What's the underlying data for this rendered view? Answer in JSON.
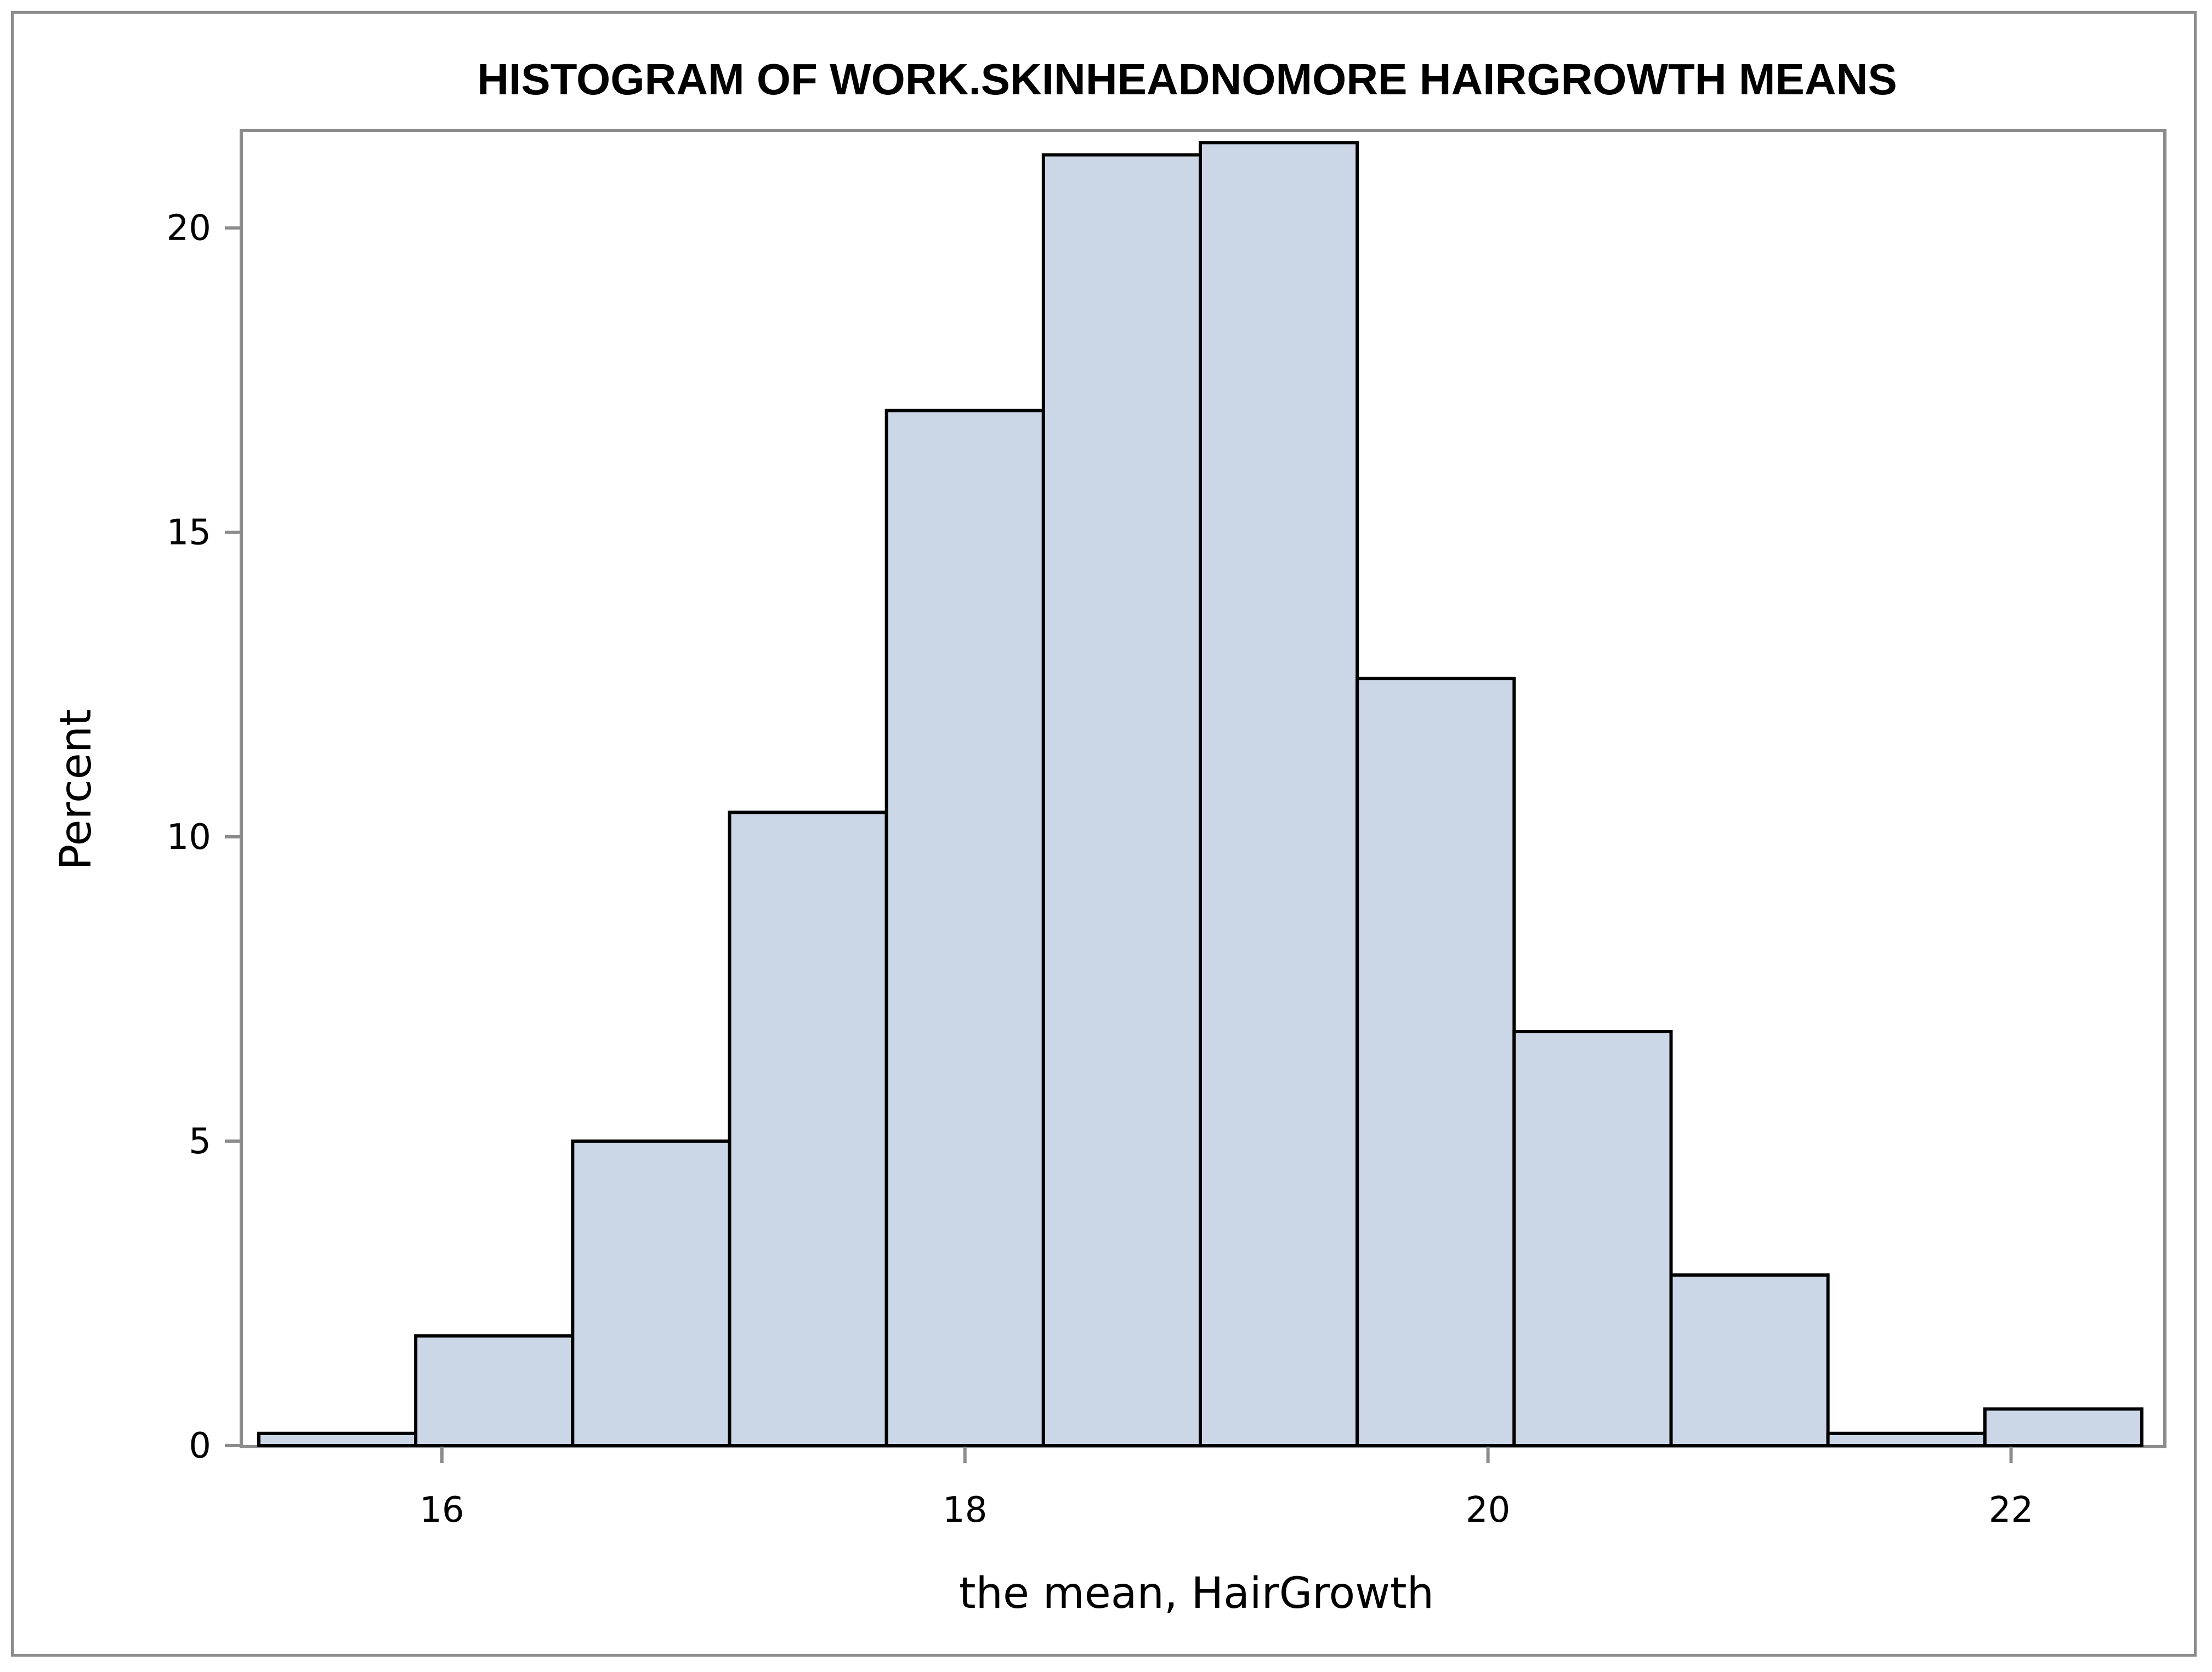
{
  "chart_data": {
    "type": "bar",
    "title": "HISTOGRAM OF WORK.SKINHEADNOMORE HAIRGROWTH MEANS",
    "xlabel": "the mean, HairGrowth",
    "ylabel": "Percent",
    "xlim": [
      15.3,
      22.5
    ],
    "ylim": [
      0,
      21.6
    ],
    "xticks": [
      16,
      18,
      20,
      22
    ],
    "yticks": [
      0,
      5,
      10,
      15,
      20
    ],
    "bin_width": 0.6,
    "bins": [
      {
        "start": 15.3,
        "end": 15.9,
        "value": 0.2
      },
      {
        "start": 15.9,
        "end": 16.5,
        "value": 1.8
      },
      {
        "start": 16.5,
        "end": 17.1,
        "value": 5.0
      },
      {
        "start": 17.1,
        "end": 17.7,
        "value": 10.4
      },
      {
        "start": 17.7,
        "end": 18.3,
        "value": 17.0
      },
      {
        "start": 18.3,
        "end": 18.9,
        "value": 21.2
      },
      {
        "start": 18.9,
        "end": 19.5,
        "value": 21.4
      },
      {
        "start": 19.5,
        "end": 20.1,
        "value": 12.6
      },
      {
        "start": 20.1,
        "end": 20.7,
        "value": 6.8
      },
      {
        "start": 20.7,
        "end": 21.3,
        "value": 2.8
      },
      {
        "start": 21.3,
        "end": 21.9,
        "value": 0.2
      },
      {
        "start": 21.9,
        "end": 22.5,
        "value": 0.6
      }
    ],
    "bar_fill": "#cbd6e6",
    "bar_stroke": "#000000",
    "axis_color": "#8c8c8c",
    "grid": false,
    "legend": "none"
  }
}
